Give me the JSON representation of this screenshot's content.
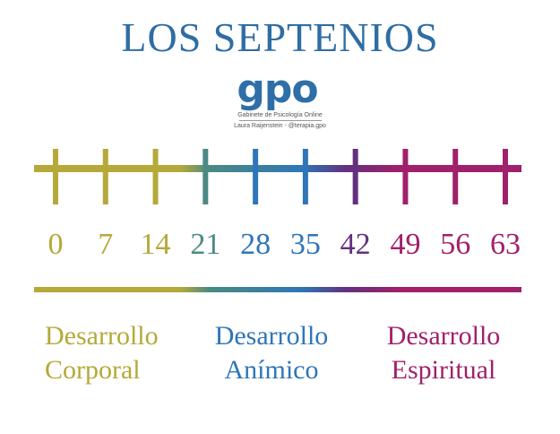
{
  "title": "LOS SEPTENIOS",
  "logo": {
    "mark": "gpo",
    "line1": "Gabinete de Psicología Online",
    "line2": "Laura Raijenstein - @terapia.gpo"
  },
  "colors": {
    "title": "#2e6da4",
    "logo": "#2e6fa8",
    "olive": "#b5a93a",
    "teal": "#4a8a82",
    "blue": "#2e76b8",
    "purple": "#63307f",
    "magenta": "#a0206b"
  },
  "chart_data": {
    "type": "timeline",
    "ticks": [
      0,
      7,
      14,
      21,
      28,
      35,
      42,
      49,
      56,
      63
    ],
    "tick_labels": [
      "0",
      "7",
      "14",
      "21",
      "28",
      "35",
      "42",
      "49",
      "56",
      "63"
    ],
    "groups": [
      {
        "line1": "Desarrollo",
        "line2": "Corporal",
        "color": "#b5a93a"
      },
      {
        "line1": "Desarrollo",
        "line2": "Anímico",
        "color": "#2e76b8"
      },
      {
        "line1": "Desarrollo",
        "line2": "Espiritual",
        "color": "#a0206b"
      }
    ]
  }
}
